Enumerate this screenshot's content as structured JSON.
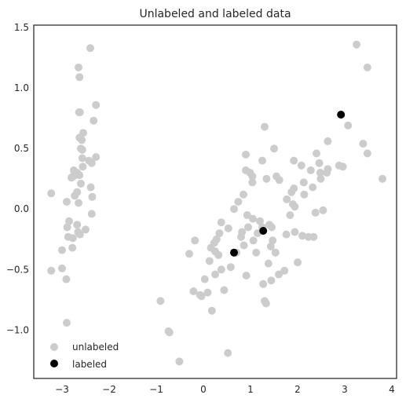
{
  "chart_data": {
    "type": "scatter",
    "title": "Unlabeled and labeled data",
    "xlabel": "",
    "ylabel": "",
    "xlim": [
      -3.6,
      4.1
    ],
    "ylim": [
      -1.4,
      1.52
    ],
    "xticks": [
      -3,
      -2,
      -1,
      0,
      1,
      2,
      3,
      4
    ],
    "yticks": [
      -1.0,
      -0.5,
      0.0,
      0.5,
      1.0,
      1.5
    ],
    "xtick_labels": [
      "−3",
      "−2",
      "−1",
      "0",
      "1",
      "2",
      "3",
      "4"
    ],
    "ytick_labels": [
      "−1.0",
      "−0.5",
      "0.0",
      "0.5",
      "1.0",
      "1.5"
    ],
    "grid": false,
    "legend_position": "bottom-left",
    "colors": {
      "unlabeled": "#cccccc",
      "labeled": "#000000",
      "frame": "#262626"
    },
    "series": [
      {
        "name": "unlabeled",
        "color": "#cccccc",
        "points": [
          [
            -2.4,
            1.33
          ],
          [
            -2.65,
            1.17
          ],
          [
            -2.63,
            1.09
          ],
          [
            -2.28,
            0.86
          ],
          [
            -2.64,
            0.8
          ],
          [
            -2.62,
            0.8
          ],
          [
            -2.33,
            0.73
          ],
          [
            -2.55,
            0.63
          ],
          [
            -2.63,
            0.59
          ],
          [
            -2.58,
            0.57
          ],
          [
            -2.6,
            0.5
          ],
          [
            -2.57,
            0.49
          ],
          [
            -2.28,
            0.43
          ],
          [
            -2.57,
            0.42
          ],
          [
            -2.43,
            0.4
          ],
          [
            -2.37,
            0.38
          ],
          [
            -2.56,
            0.35
          ],
          [
            -2.75,
            0.32
          ],
          [
            -2.68,
            0.3
          ],
          [
            -2.63,
            0.28
          ],
          [
            -2.8,
            0.26
          ],
          [
            -2.76,
            0.27
          ],
          [
            -2.6,
            0.21
          ],
          [
            -2.39,
            0.18
          ],
          [
            -2.68,
            0.14
          ],
          [
            -3.23,
            0.13
          ],
          [
            -2.73,
            0.11
          ],
          [
            -2.36,
            0.1
          ],
          [
            -2.9,
            0.06
          ],
          [
            -2.65,
            0.05
          ],
          [
            -2.37,
            -0.04
          ],
          [
            -2.85,
            -0.1
          ],
          [
            -2.68,
            -0.13
          ],
          [
            -2.89,
            -0.15
          ],
          [
            -2.5,
            -0.17
          ],
          [
            -2.66,
            -0.19
          ],
          [
            -2.87,
            -0.23
          ],
          [
            -2.62,
            -0.21
          ],
          [
            -2.77,
            -0.24
          ],
          [
            -2.78,
            -0.32
          ],
          [
            -3.0,
            -0.34
          ],
          [
            -3.23,
            -0.51
          ],
          [
            -3.0,
            -0.49
          ],
          [
            -2.91,
            -0.58
          ],
          [
            -2.9,
            -0.94
          ],
          [
            -0.91,
            -0.76
          ],
          [
            -0.74,
            -1.01
          ],
          [
            -0.72,
            -1.02
          ],
          [
            -0.51,
            -1.26
          ],
          [
            -0.3,
            -0.37
          ],
          [
            -0.18,
            -0.26
          ],
          [
            -0.21,
            -0.68
          ],
          [
            -0.07,
            -0.71
          ],
          [
            -0.04,
            -0.72
          ],
          [
            0.03,
            -0.58
          ],
          [
            0.09,
            -0.69
          ],
          [
            0.13,
            -0.43
          ],
          [
            0.16,
            -0.32
          ],
          [
            0.18,
            -0.84
          ],
          [
            0.23,
            -0.28
          ],
          [
            0.25,
            -0.35
          ],
          [
            0.25,
            -0.54
          ],
          [
            0.28,
            -0.25
          ],
          [
            0.32,
            -0.38
          ],
          [
            0.34,
            -0.2
          ],
          [
            0.38,
            -0.5
          ],
          [
            0.38,
            -0.11
          ],
          [
            0.44,
            -0.67
          ],
          [
            0.52,
            -1.19
          ],
          [
            0.53,
            -0.16
          ],
          [
            0.58,
            -0.48
          ],
          [
            0.65,
            0.0
          ],
          [
            0.7,
            -0.36
          ],
          [
            0.74,
            0.06
          ],
          [
            0.8,
            -0.23
          ],
          [
            0.82,
            -0.19
          ],
          [
            0.85,
            0.12
          ],
          [
            0.86,
            -0.3
          ],
          [
            0.9,
            0.32
          ],
          [
            0.9,
            0.45
          ],
          [
            0.91,
            -0.55
          ],
          [
            0.93,
            -0.05
          ],
          [
            0.95,
            -0.15
          ],
          [
            0.99,
            0.3
          ],
          [
            1.04,
            0.27
          ],
          [
            1.04,
            0.22
          ],
          [
            1.05,
            -0.08
          ],
          [
            1.06,
            -0.26
          ],
          [
            1.12,
            -0.36
          ],
          [
            1.15,
            -0.2
          ],
          [
            1.2,
            -0.1
          ],
          [
            1.25,
            0.4
          ],
          [
            1.25,
            -0.15
          ],
          [
            1.27,
            -0.62
          ],
          [
            1.3,
            0.68
          ],
          [
            1.3,
            -0.76
          ],
          [
            1.33,
            -0.78
          ],
          [
            1.34,
            0.25
          ],
          [
            1.38,
            -0.45
          ],
          [
            1.4,
            -0.13
          ],
          [
            1.43,
            -0.31
          ],
          [
            1.44,
            -0.59
          ],
          [
            1.45,
            -0.15
          ],
          [
            1.47,
            -0.26
          ],
          [
            1.5,
            0.5
          ],
          [
            1.53,
            -0.36
          ],
          [
            1.55,
            0.27
          ],
          [
            1.6,
            -0.54
          ],
          [
            1.61,
            0.24
          ],
          [
            1.72,
            -0.51
          ],
          [
            1.76,
            -0.21
          ],
          [
            1.77,
            0.08
          ],
          [
            1.84,
            -0.05
          ],
          [
            1.87,
            0.14
          ],
          [
            1.9,
            0.04
          ],
          [
            1.92,
            0.4
          ],
          [
            1.92,
            0.17
          ],
          [
            1.94,
            -0.19
          ],
          [
            1.94,
            0.02
          ],
          [
            2.0,
            -0.44
          ],
          [
            2.08,
            0.36
          ],
          [
            2.1,
            -0.22
          ],
          [
            2.13,
            0.22
          ],
          [
            2.14,
            0.12
          ],
          [
            2.23,
            -0.23
          ],
          [
            2.28,
            0.32
          ],
          [
            2.32,
            0.18
          ],
          [
            2.34,
            -0.23
          ],
          [
            2.38,
            -0.03
          ],
          [
            2.4,
            0.46
          ],
          [
            2.46,
            0.38
          ],
          [
            2.48,
            0.3
          ],
          [
            2.49,
            0.25
          ],
          [
            2.54,
            -0.01
          ],
          [
            2.62,
            0.3
          ],
          [
            2.64,
            0.33
          ],
          [
            2.64,
            0.56
          ],
          [
            2.88,
            0.36
          ],
          [
            2.96,
            0.35
          ],
          [
            3.07,
            0.69
          ],
          [
            3.25,
            1.36
          ],
          [
            3.39,
            0.54
          ],
          [
            3.48,
            0.46
          ],
          [
            3.48,
            1.17
          ],
          [
            3.8,
            0.25
          ]
        ]
      },
      {
        "name": "labeled",
        "color": "#000000",
        "points": [
          [
            0.65,
            -0.36
          ],
          [
            1.27,
            -0.18
          ],
          [
            2.92,
            0.78
          ]
        ]
      }
    ]
  }
}
